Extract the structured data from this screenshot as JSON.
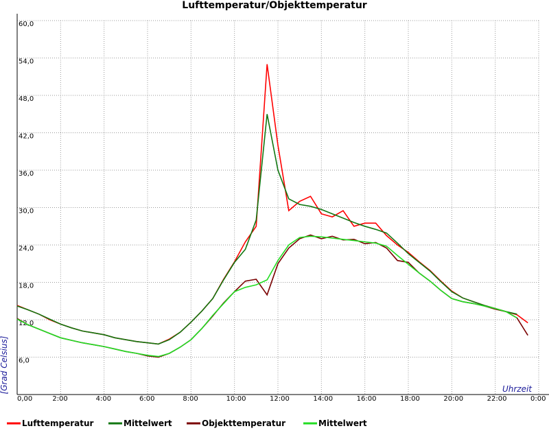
{
  "chart_data": {
    "type": "line",
    "title": "Lufttemperatur/Objekttemperatur",
    "x_label": "Uhrzeit",
    "y_label": "[Grad Celsius]",
    "grid": true,
    "legend": "bottom",
    "xlim": [
      0,
      24
    ],
    "ylim": [
      0,
      60
    ],
    "xticks": [
      {
        "value": 0,
        "label": "0,00"
      },
      {
        "value": 2,
        "label": "2:00"
      },
      {
        "value": 4,
        "label": "4:00"
      },
      {
        "value": 6,
        "label": "6:00"
      },
      {
        "value": 8,
        "label": "8:00"
      },
      {
        "value": 10,
        "label": "10:00"
      },
      {
        "value": 12,
        "label": "12:00"
      },
      {
        "value": 14,
        "label": "14:00"
      },
      {
        "value": 16,
        "label": "16:00"
      },
      {
        "value": 18,
        "label": "18:00"
      },
      {
        "value": 20,
        "label": "20:00"
      },
      {
        "value": 22,
        "label": "22:00"
      },
      {
        "value": 24,
        "label": "0:00"
      }
    ],
    "yticks": [
      {
        "value": 6,
        "label": "6,0"
      },
      {
        "value": 12,
        "label": "12,0"
      },
      {
        "value": 18,
        "label": "18,0"
      },
      {
        "value": 24,
        "label": "24,0"
      },
      {
        "value": 30,
        "label": "30,0"
      },
      {
        "value": 36,
        "label": "36,0"
      },
      {
        "value": 42,
        "label": "42,0"
      },
      {
        "value": 48,
        "label": "48,0"
      },
      {
        "value": 54,
        "label": "54,0"
      },
      {
        "value": 60,
        "label": "60,0"
      }
    ],
    "x": [
      0,
      0.5,
      1,
      1.5,
      2,
      2.5,
      3,
      3.5,
      4,
      4.5,
      5,
      5.5,
      6,
      6.5,
      7,
      7.5,
      8,
      8.5,
      9,
      9.5,
      10,
      10.5,
      11,
      11.5,
      12,
      12.5,
      13,
      13.5,
      14,
      14.5,
      15,
      15.5,
      16,
      16.5,
      17,
      17.5,
      18,
      18.5,
      19,
      19.5,
      20,
      20.5,
      21,
      21.5,
      22,
      22.5,
      23,
      23.5
    ],
    "series": [
      {
        "name": "Lufttemperatur",
        "color": "#ff0000",
        "values": [
          14.3,
          13.6,
          12.9,
          12.0,
          11.3,
          10.7,
          10.2,
          9.9,
          9.6,
          9.1,
          8.8,
          8.5,
          8.3,
          8.1,
          8.9,
          10.0,
          11.6,
          13.4,
          15.4,
          18.5,
          21.3,
          24.5,
          27,
          53,
          40,
          29.5,
          31,
          31.8,
          29,
          28.5,
          29.5,
          27,
          27.5,
          27.5,
          25.5,
          24,
          22.8,
          21.3,
          19.9,
          18.2,
          16.6,
          15.5,
          14.9,
          14.3,
          13.8,
          13.3,
          12.8,
          11.5
        ]
      },
      {
        "name": "Mittelwert",
        "color": "#117711",
        "values": [
          14.2,
          13.6,
          12.9,
          12.1,
          11.3,
          10.7,
          10.2,
          9.9,
          9.6,
          9.1,
          8.8,
          8.5,
          8.3,
          8.1,
          8.8,
          10.0,
          11.6,
          13.4,
          15.4,
          18.4,
          21.2,
          23.3,
          28,
          45,
          36,
          31.4,
          30.5,
          30.2,
          29.7,
          29,
          28.3,
          27.6,
          27,
          26.5,
          25.9,
          24.3,
          22.6,
          21.2,
          19.8,
          18.1,
          16.5,
          15.5,
          14.9,
          14.3,
          13.8,
          13.3,
          12.9,
          null
        ]
      },
      {
        "name": "Objekttemperatur",
        "color": "#7a0000",
        "values": [
          12.2,
          11.2,
          10.5,
          9.8,
          9.1,
          8.7,
          8.3,
          8.0,
          7.7,
          7.3,
          6.9,
          6.6,
          6.2,
          6.0,
          6.6,
          7.6,
          8.8,
          10.6,
          12.6,
          14.7,
          16.5,
          18.2,
          18.5,
          16,
          21,
          23.5,
          25,
          25.6,
          25.0,
          25.4,
          24.8,
          24.9,
          24.2,
          24.4,
          23.5,
          21.5,
          21.2,
          19.5,
          18.2,
          16.7,
          15.4,
          14.9,
          14.6,
          14.2,
          13.7,
          13.3,
          12.3,
          9.5
        ]
      },
      {
        "name": "Mittelwert",
        "color": "#22dd22",
        "values": [
          12.1,
          11.2,
          10.5,
          9.8,
          9.1,
          8.7,
          8.3,
          8.0,
          7.7,
          7.3,
          6.9,
          6.6,
          6.3,
          6.1,
          6.6,
          7.6,
          8.8,
          10.6,
          12.7,
          14.6,
          16.5,
          17.2,
          17.6,
          18.4,
          21.5,
          24,
          25.2,
          25.4,
          25.3,
          25.1,
          24.9,
          24.7,
          24.5,
          24.3,
          23.8,
          22.3,
          20.9,
          19.5,
          18.2,
          16.7,
          15.4,
          14.9,
          14.6,
          14.2,
          13.8,
          13.3,
          12.3,
          null
        ]
      }
    ]
  }
}
